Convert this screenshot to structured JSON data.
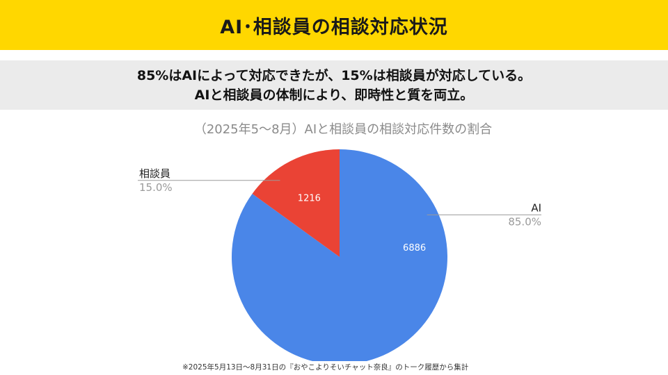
{
  "header": {
    "title": "AI･相談員の相談対応状況"
  },
  "message": {
    "line1": "85%はAIによって対応できたが、15%は相談員が対応している。",
    "line2": "AIと相談員の体制により、即時性と質を両立。"
  },
  "chart_data": {
    "type": "pie",
    "title": "（2025年5〜8月）AIと相談員の相談対応件数の割合",
    "slices": [
      {
        "label": "AI",
        "value": 6886,
        "percent_label": "85.0%",
        "color": "#4A86E8"
      },
      {
        "label": "相談員",
        "value": 1216,
        "percent_label": "15.0%",
        "color": "#EA4335"
      }
    ]
  },
  "footnote": "※2025年5月13日〜8月31日の『おやこよりそいチャット奈良』のトーク履歴から集計"
}
